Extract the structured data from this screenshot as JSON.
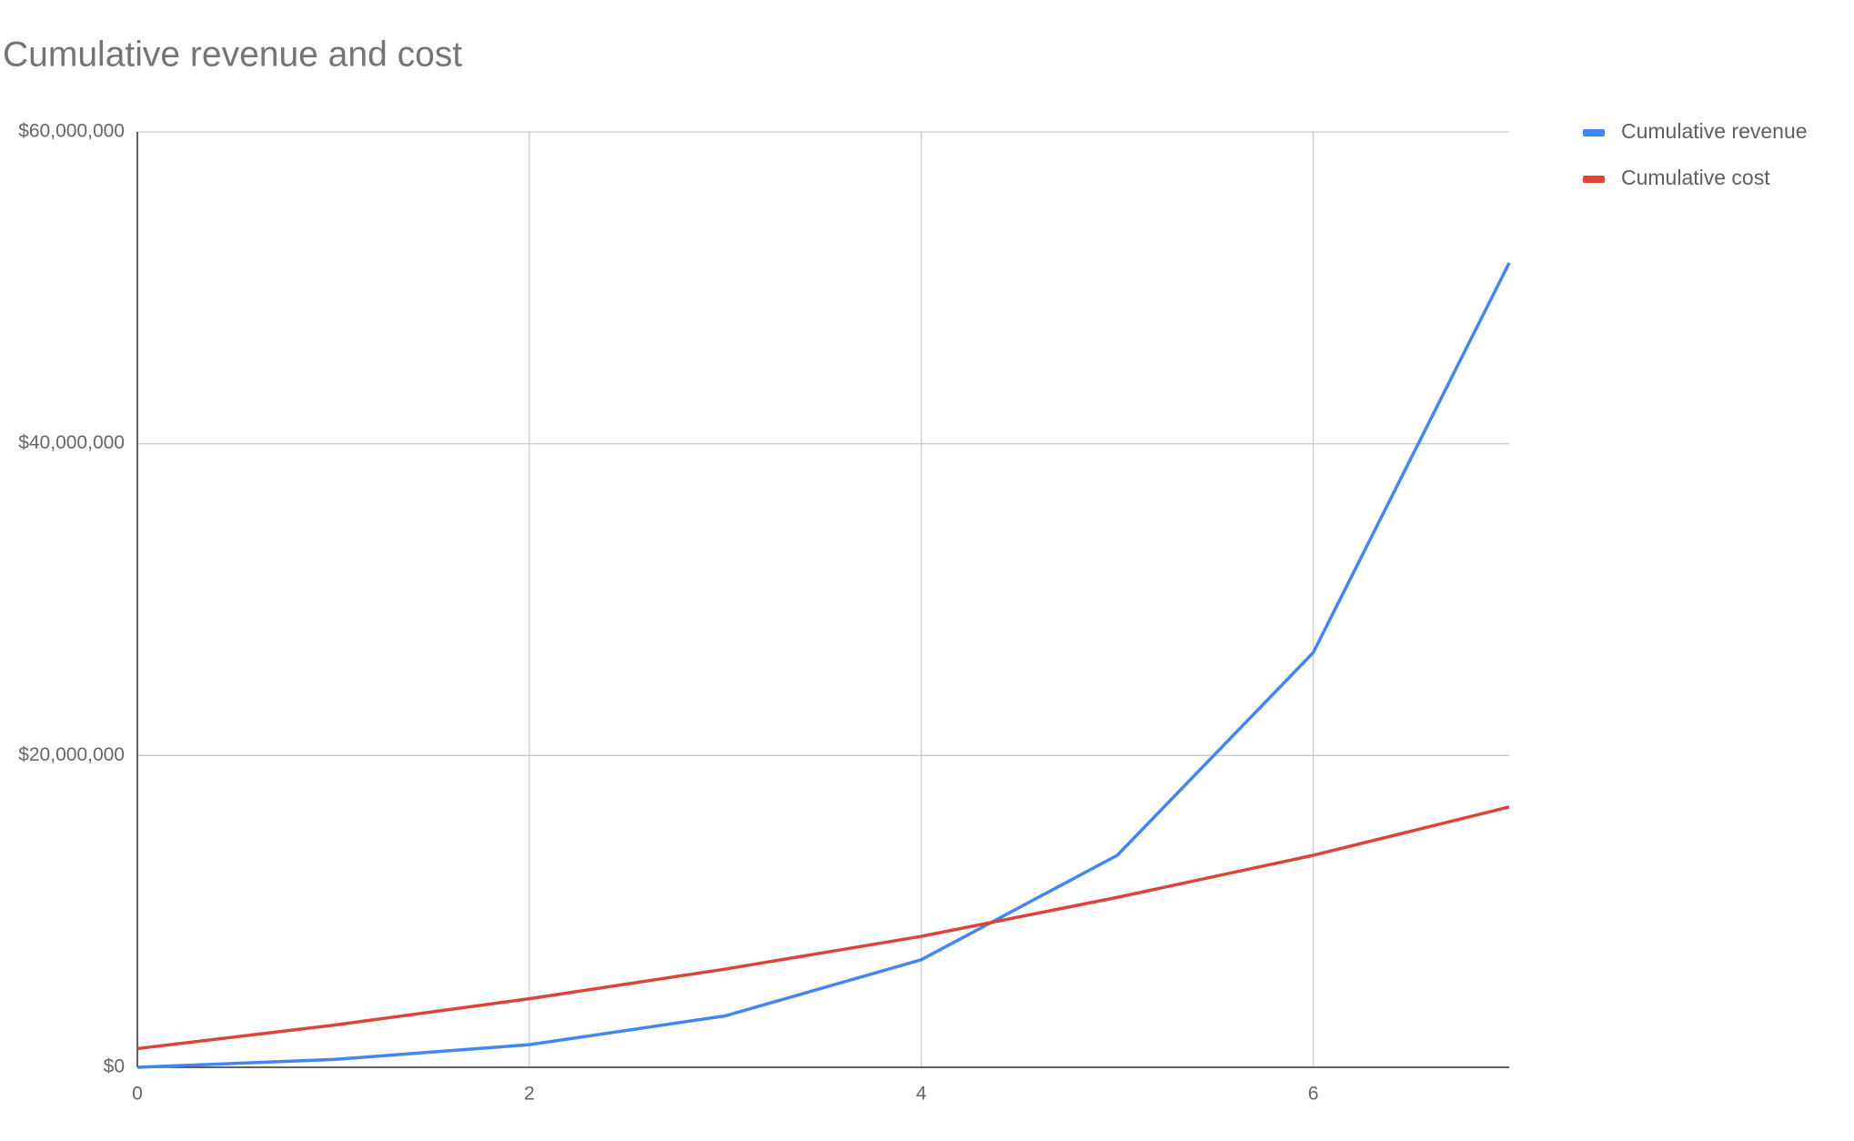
{
  "chart_data": {
    "type": "line",
    "title": "Cumulative revenue and cost",
    "x": [
      0,
      1,
      2,
      3,
      4,
      5,
      6,
      7
    ],
    "series": [
      {
        "name": "Cumulative revenue",
        "color": "#4285f4",
        "values": [
          0,
          500000,
          1450000,
          3300000,
          6900000,
          13600000,
          26600000,
          51600000
        ]
      },
      {
        "name": "Cumulative cost",
        "color": "#db4437",
        "values": [
          1200000,
          2700000,
          4400000,
          6300000,
          8400000,
          10900000,
          13600000,
          16700000
        ]
      }
    ],
    "xlim": [
      0,
      7
    ],
    "xticks": [
      0,
      2,
      4,
      6
    ],
    "ylim": [
      0,
      60000000
    ],
    "yticks": [
      {
        "value": 0,
        "label": "$0"
      },
      {
        "value": 20000000,
        "label": "$20,000,000"
      },
      {
        "value": 40000000,
        "label": "$40,000,000"
      },
      {
        "value": 60000000,
        "label": "$60,000,000"
      }
    ],
    "grid": true,
    "legend": "right"
  }
}
